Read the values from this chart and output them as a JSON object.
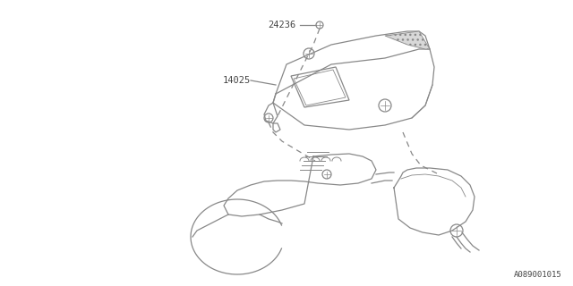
{
  "bg_color": "#ffffff",
  "line_color": "#888888",
  "text_color": "#444444",
  "part_label_1": "24236",
  "part_label_2": "14025",
  "footer_text": "A089001015"
}
